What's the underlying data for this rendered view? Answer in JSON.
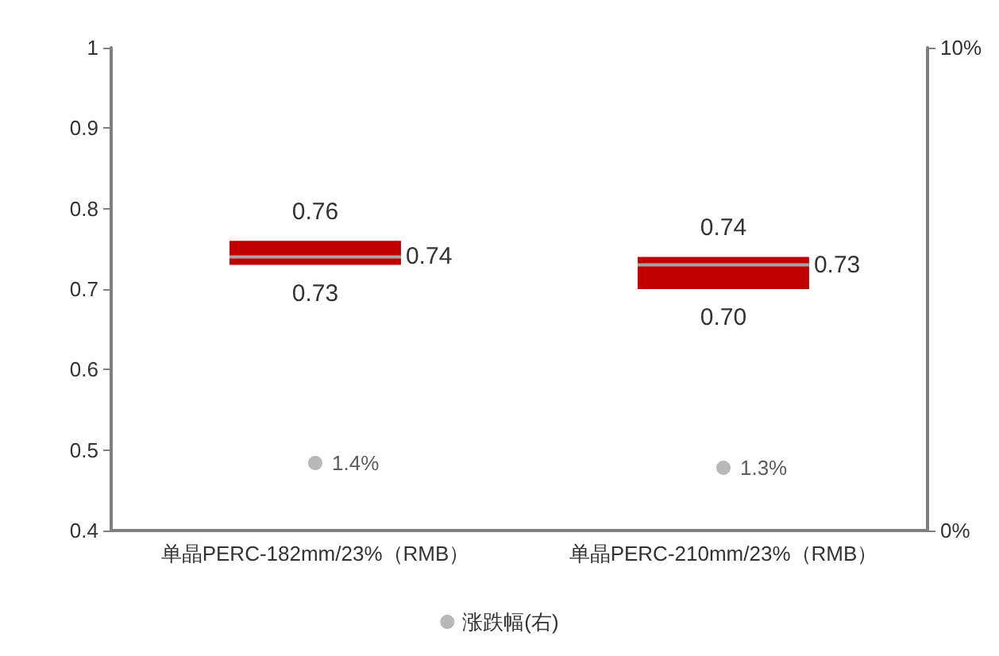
{
  "chart_data": {
    "type": "box",
    "categories": [
      "单晶PERC-182mm/23%（RMB）",
      "单晶PERC-210mm/23%（RMB）"
    ],
    "series": [
      {
        "color": "#c00000",
        "boxes": [
          {
            "low": 0.73,
            "q1": 0.73,
            "median": 0.74,
            "q3": 0.76,
            "high": 0.76
          },
          {
            "low": 0.7,
            "q1": 0.7,
            "median": 0.73,
            "q3": 0.74,
            "high": 0.74
          }
        ]
      },
      {
        "type": "scatter",
        "axis": "y2",
        "name": "涨跌幅(右)",
        "color": "#a6a6a6",
        "values": [
          1.4,
          1.3
        ],
        "value_labels": [
          "1.4%",
          "1.3%"
        ]
      }
    ],
    "annotations": [
      {
        "text": "0.76",
        "x": "单晶PERC-182mm/23%（RMB）",
        "y": 0.76
      },
      "0.74",
      {
        "text": "0.73",
        "x": "单晶PERC-182mm/23%（RMB）",
        "y": 0.73
      },
      {
        "text": "0.74",
        "x": "单晶PERC-210mm/23%（RMB）",
        "y": 0.74
      },
      "0.73",
      {
        "text": "0.70",
        "x": "单晶PERC-210mm/23%（RMB）",
        "y": 0.7
      }
    ],
    "ylim": [
      0.4,
      1
    ],
    "yticks": [
      0.4,
      0.5,
      0.6,
      0.7,
      0.8,
      0.9,
      1
    ],
    "y2lim": [
      0,
      10
    ],
    "y2ticks": [
      {
        "value": 0,
        "label": "0%"
      },
      {
        "value": 10,
        "label": "10%"
      }
    ],
    "legend": "bottom",
    "grid": false
  }
}
